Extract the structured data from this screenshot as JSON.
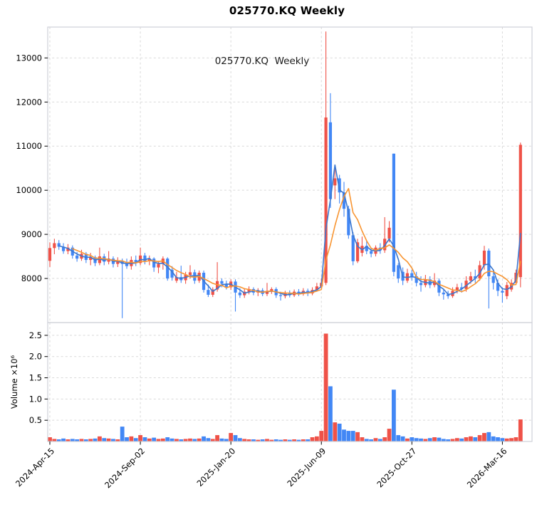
{
  "figure": {
    "title": "025770.KQ  Weekly",
    "inplot_label": "025770.KQ  Weekly",
    "background": "#ffffff"
  },
  "chart_data": {
    "type": "candlestick",
    "symbol": "025770.KQ",
    "frequency": "Weekly",
    "title": "025770.KQ  Weekly",
    "x_tick_labels": [
      "2024-Apr-15",
      "2024-Sep-02",
      "2025-Jan-20",
      "2025-Jun-09",
      "2025-Oct-27",
      "2026-Mar-16"
    ],
    "x_tick_indices": [
      0,
      20,
      40,
      60,
      80,
      100
    ],
    "price_axis": {
      "tick_labels": [
        "8000",
        "9000",
        "10000",
        "11000",
        "12000",
        "13000"
      ],
      "ticks": [
        8000,
        9000,
        10000,
        11000,
        12000,
        13000
      ],
      "ylim": [
        7000,
        13700
      ],
      "grid": true
    },
    "volume_axis": {
      "label": "Volume ×10⁶",
      "tick_labels": [
        "0.5",
        "1.0",
        "1.5",
        "2.0",
        "2.5"
      ],
      "ticks": [
        0.5,
        1.0,
        1.5,
        2.0,
        2.5
      ],
      "ylim": [
        0,
        2.8
      ],
      "unit": 1000000,
      "grid": true
    },
    "colors": {
      "up": "#ef5248",
      "down": "#4287f5",
      "ma_short": "#3b77cf",
      "ma_long": "#f89532",
      "grid": "#d9d9d9",
      "spine": "#cfd0d8",
      "tick_text": "#000000"
    },
    "moving_averages": [
      {
        "name": "ma-short",
        "window": 3,
        "color_key": "ma_short"
      },
      {
        "name": "ma-long",
        "window": 6,
        "color_key": "ma_long"
      }
    ],
    "candles_format": [
      "open",
      "high",
      "low",
      "close",
      "volume_millions"
    ],
    "candles": [
      [
        8400,
        8820,
        8260,
        8690,
        0.1
      ],
      [
        8690,
        8900,
        8550,
        8800,
        0.06
      ],
      [
        8800,
        8870,
        8650,
        8720,
        0.05
      ],
      [
        8720,
        8800,
        8560,
        8620,
        0.07
      ],
      [
        8620,
        8780,
        8550,
        8700,
        0.05
      ],
      [
        8700,
        8750,
        8450,
        8520,
        0.06
      ],
      [
        8520,
        8600,
        8380,
        8450,
        0.05
      ],
      [
        8450,
        8650,
        8400,
        8560,
        0.06
      ],
      [
        8560,
        8600,
        8350,
        8420,
        0.05
      ],
      [
        8420,
        8580,
        8300,
        8480,
        0.06
      ],
      [
        8480,
        8520,
        8280,
        8350,
        0.07
      ],
      [
        8350,
        8700,
        8300,
        8500,
        0.12
      ],
      [
        8500,
        8560,
        8300,
        8380,
        0.08
      ],
      [
        8380,
        8620,
        8320,
        8450,
        0.07
      ],
      [
        8450,
        8500,
        8250,
        8330,
        0.06
      ],
      [
        8330,
        8480,
        8260,
        8400,
        0.05
      ],
      [
        8400,
        8450,
        7100,
        8330,
        0.35
      ],
      [
        8330,
        8450,
        8220,
        8280,
        0.1
      ],
      [
        8280,
        8500,
        8200,
        8420,
        0.12
      ],
      [
        8420,
        8520,
        8280,
        8350,
        0.08
      ],
      [
        8350,
        8700,
        8300,
        8520,
        0.15
      ],
      [
        8520,
        8580,
        8320,
        8400,
        0.1
      ],
      [
        8400,
        8520,
        8300,
        8450,
        0.07
      ],
      [
        8450,
        8480,
        8150,
        8250,
        0.09
      ],
      [
        8250,
        8400,
        8120,
        8330,
        0.06
      ],
      [
        8330,
        8500,
        8200,
        8450,
        0.07
      ],
      [
        8450,
        8480,
        7950,
        8000,
        0.1
      ],
      [
        8200,
        8280,
        7950,
        8020,
        0.07
      ],
      [
        7950,
        8150,
        7900,
        8030,
        0.06
      ],
      [
        8030,
        8290,
        7900,
        7960,
        0.05
      ],
      [
        7960,
        8150,
        7880,
        8080,
        0.06
      ],
      [
        8080,
        8300,
        8000,
        8140,
        0.07
      ],
      [
        8140,
        8200,
        7880,
        7950,
        0.06
      ],
      [
        7950,
        8180,
        7900,
        8130,
        0.07
      ],
      [
        8130,
        8180,
        7680,
        7740,
        0.12
      ],
      [
        7740,
        7860,
        7580,
        7630,
        0.08
      ],
      [
        7630,
        7800,
        7580,
        7750,
        0.06
      ],
      [
        7750,
        8370,
        7700,
        7940,
        0.15
      ],
      [
        7940,
        8000,
        7800,
        7880,
        0.07
      ],
      [
        7880,
        7950,
        7750,
        7800,
        0.06
      ],
      [
        7800,
        7980,
        7740,
        7930,
        0.2
      ],
      [
        7930,
        7980,
        7250,
        7680,
        0.15
      ],
      [
        7680,
        7780,
        7560,
        7620,
        0.08
      ],
      [
        7620,
        7760,
        7560,
        7700,
        0.06
      ],
      [
        7700,
        7820,
        7640,
        7760,
        0.05
      ],
      [
        7760,
        7800,
        7620,
        7680,
        0.05
      ],
      [
        7680,
        7780,
        7600,
        7730,
        0.04
      ],
      [
        7730,
        7780,
        7600,
        7650,
        0.05
      ],
      [
        7650,
        7900,
        7600,
        7720,
        0.06
      ],
      [
        7720,
        7800,
        7650,
        7760,
        0.04
      ],
      [
        7760,
        7800,
        7560,
        7620,
        0.05
      ],
      [
        7620,
        7700,
        7500,
        7600,
        0.04
      ],
      [
        7600,
        7720,
        7550,
        7680,
        0.05
      ],
      [
        7680,
        7730,
        7570,
        7620,
        0.04
      ],
      [
        7620,
        7750,
        7580,
        7700,
        0.05
      ],
      [
        7700,
        7760,
        7600,
        7650,
        0.04
      ],
      [
        7650,
        7780,
        7610,
        7720,
        0.05
      ],
      [
        7720,
        7770,
        7600,
        7660,
        0.05
      ],
      [
        7660,
        7800,
        7620,
        7740,
        0.1
      ],
      [
        7740,
        7900,
        7700,
        7820,
        0.12
      ],
      [
        7820,
        8000,
        7750,
        7900,
        0.25
      ],
      [
        7900,
        13600,
        7850,
        11650,
        2.54
      ],
      [
        11540,
        12200,
        9600,
        9800,
        1.3
      ],
      [
        10110,
        10570,
        9800,
        10270,
        0.45
      ],
      [
        10270,
        10350,
        9700,
        9950,
        0.42
      ],
      [
        9950,
        10190,
        9400,
        9580,
        0.28
      ],
      [
        9580,
        9650,
        8900,
        8980,
        0.25
      ],
      [
        8980,
        9050,
        8300,
        8390,
        0.25
      ],
      [
        8390,
        8900,
        8350,
        8820,
        0.22
      ],
      [
        8580,
        8950,
        8500,
        8740,
        0.1
      ],
      [
        8740,
        8850,
        8550,
        8620,
        0.06
      ],
      [
        8620,
        8700,
        8480,
        8560,
        0.05
      ],
      [
        8560,
        8750,
        8500,
        8700,
        0.08
      ],
      [
        8700,
        8800,
        8560,
        8640,
        0.06
      ],
      [
        8640,
        9390,
        8580,
        8900,
        0.1
      ],
      [
        8900,
        9300,
        8820,
        9150,
        0.3
      ],
      [
        10830,
        10830,
        8050,
        8150,
        1.22
      ],
      [
        8300,
        8350,
        7900,
        8000,
        0.15
      ],
      [
        8150,
        8250,
        7850,
        7950,
        0.12
      ],
      [
        7950,
        8220,
        7900,
        8120,
        0.07
      ],
      [
        8120,
        8200,
        7950,
        8050,
        0.1
      ],
      [
        8050,
        8150,
        7820,
        7900,
        0.08
      ],
      [
        7900,
        8050,
        7700,
        7850,
        0.07
      ],
      [
        7850,
        8080,
        7800,
        7980,
        0.06
      ],
      [
        7980,
        8050,
        7780,
        7850,
        0.08
      ],
      [
        7850,
        8120,
        7800,
        7950,
        0.1
      ],
      [
        7950,
        8000,
        7600,
        7680,
        0.09
      ],
      [
        7680,
        7760,
        7520,
        7640,
        0.06
      ],
      [
        7640,
        7720,
        7540,
        7600,
        0.05
      ],
      [
        7600,
        7800,
        7560,
        7720,
        0.06
      ],
      [
        7720,
        7880,
        7660,
        7800,
        0.08
      ],
      [
        7800,
        7900,
        7680,
        7760,
        0.07
      ],
      [
        7760,
        8050,
        7700,
        7950,
        0.1
      ],
      [
        7950,
        8150,
        7880,
        8050,
        0.12
      ],
      [
        8050,
        8200,
        7900,
        8000,
        0.1
      ],
      [
        8000,
        8400,
        7950,
        8300,
        0.15
      ],
      [
        8300,
        8740,
        8200,
        8630,
        0.2
      ],
      [
        8630,
        8680,
        7320,
        8050,
        0.22
      ],
      [
        8050,
        8150,
        7750,
        7900,
        0.12
      ],
      [
        7900,
        7980,
        7600,
        7720,
        0.1
      ],
      [
        7720,
        7800,
        7450,
        7680,
        0.08
      ],
      [
        7600,
        7920,
        7530,
        7850,
        0.07
      ],
      [
        7750,
        7980,
        7700,
        7900,
        0.08
      ],
      [
        7900,
        8200,
        7850,
        8130,
        0.1
      ],
      [
        8030,
        11080,
        7800,
        11030,
        0.52
      ]
    ]
  }
}
